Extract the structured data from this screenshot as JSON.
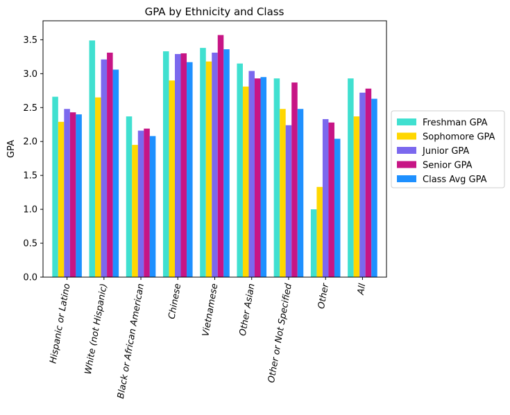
{
  "chart_data": {
    "type": "bar",
    "title": "GPA by Ethnicity and Class",
    "xlabel": "",
    "ylabel": "GPA",
    "ylim": [
      0,
      3.78
    ],
    "yticks": [
      "0.0",
      "0.5",
      "1.0",
      "1.5",
      "2.0",
      "2.5",
      "3.0",
      "3.5"
    ],
    "ytick_values": [
      0,
      0.5,
      1.0,
      1.5,
      2.0,
      2.5,
      3.0,
      3.5
    ],
    "categories": [
      "Hispanic or Latino",
      "White (not Hispanic)",
      "Black or African American",
      "Chinese",
      "Vietnamese",
      "Other Asian",
      "Other or Not Specified",
      "Other",
      "All"
    ],
    "series": [
      {
        "name": "Freshman GPA",
        "color": "#40E0D0",
        "values": [
          2.66,
          3.49,
          2.37,
          3.33,
          3.38,
          3.15,
          2.93,
          1.0,
          2.93
        ]
      },
      {
        "name": "Sophomore GPA",
        "color": "#FFD700",
        "values": [
          2.29,
          2.65,
          1.95,
          2.9,
          3.18,
          2.81,
          2.48,
          1.33,
          2.37
        ]
      },
      {
        "name": "Junior GPA",
        "color": "#7B68EE",
        "values": [
          2.48,
          3.21,
          2.16,
          3.29,
          3.31,
          3.04,
          2.24,
          2.33,
          2.72
        ]
      },
      {
        "name": "Senior GPA",
        "color": "#C71585",
        "values": [
          2.43,
          3.31,
          2.19,
          3.3,
          3.57,
          2.93,
          2.87,
          2.28,
          2.78
        ]
      },
      {
        "name": "Class Avg GPA",
        "color": "#1E90FF",
        "values": [
          2.4,
          3.06,
          2.08,
          3.17,
          3.36,
          2.95,
          2.48,
          2.04,
          2.63
        ]
      }
    ],
    "legend": "right-outside",
    "grid": false
  }
}
